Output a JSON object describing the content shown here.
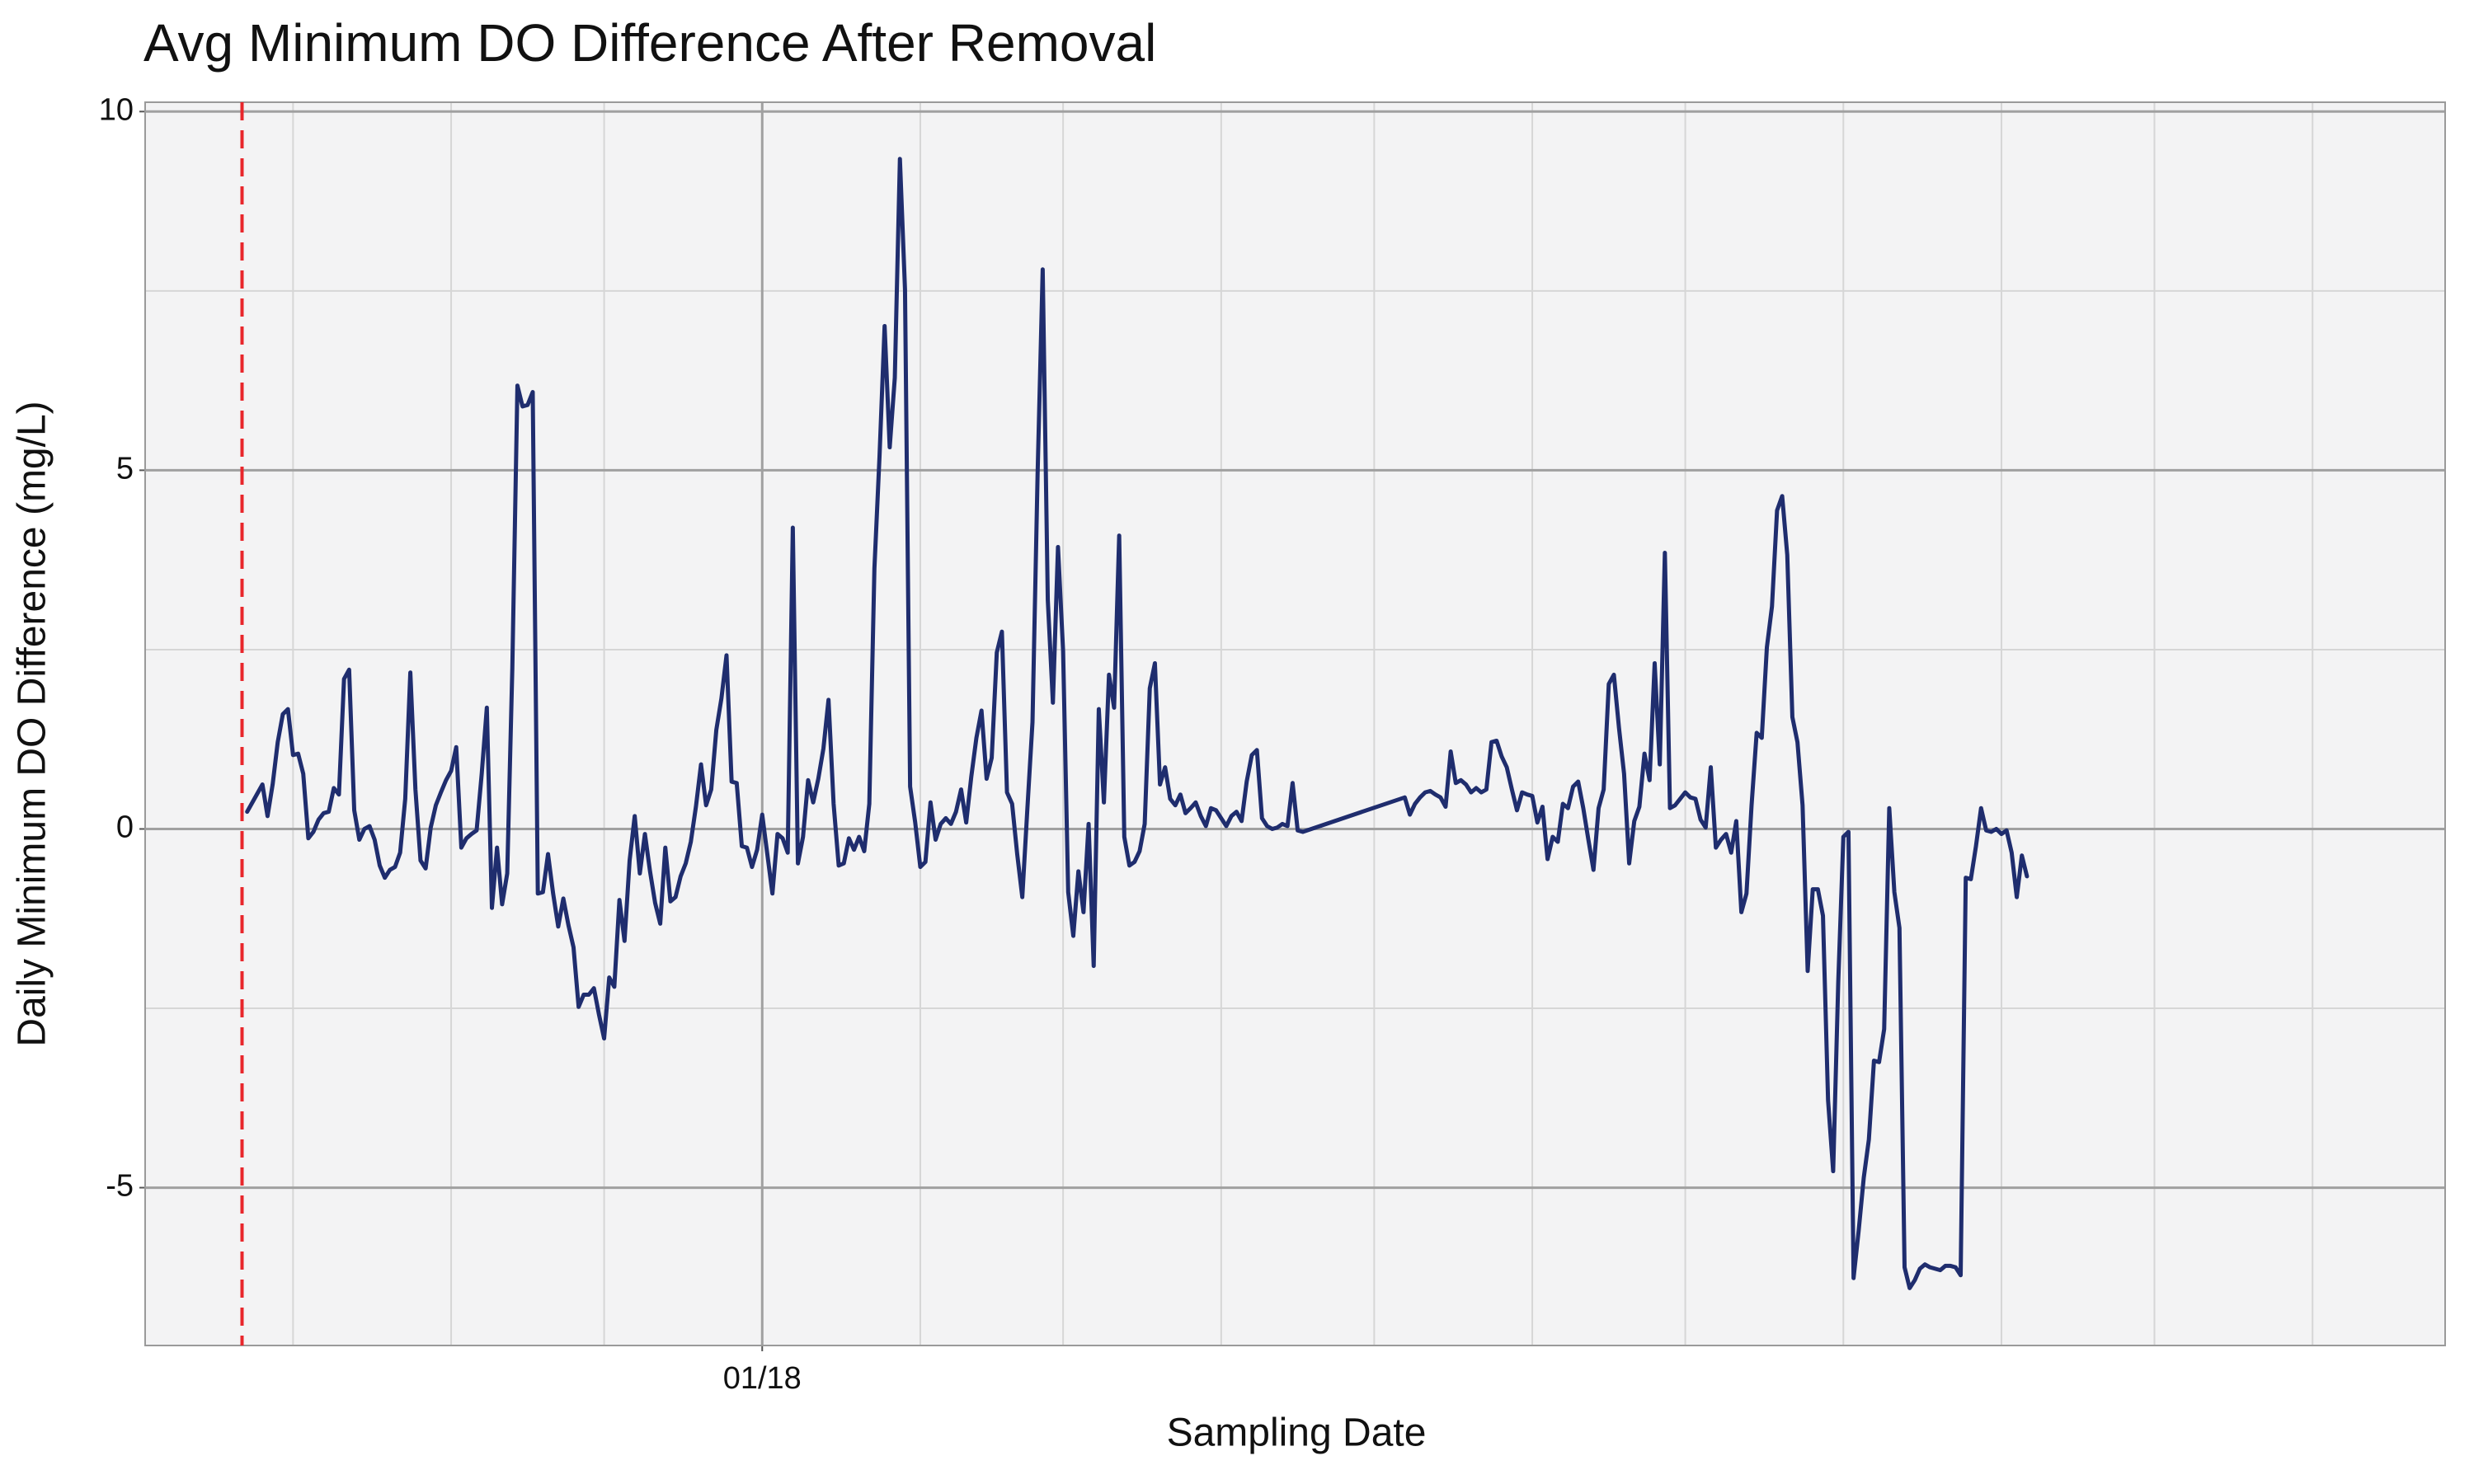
{
  "chart_data": {
    "type": "line",
    "title": "Avg Minimum DO Difference After Removal",
    "x_label": "Sampling Date",
    "y_label": "Daily Minimum DO Difference (mg/L)",
    "color": "#1f2d6e",
    "grid": true,
    "vline": {
      "value": -102,
      "color": "#e8262b"
    },
    "xlim": [
      -121,
      330
    ],
    "xticks": [
      {
        "value": 0,
        "label": "01/18"
      }
    ],
    "minor_xticks": [
      -92,
      -61,
      -31,
      31,
      59,
      90,
      120,
      151,
      181,
      212,
      243,
      273,
      304
    ],
    "ylim": [
      -7.2,
      10.13
    ],
    "yticks": [
      -5,
      0,
      5,
      10
    ],
    "minor_yticks": [
      -2.5,
      2.5,
      7.5
    ],
    "x": [
      -101,
      -98,
      -97,
      -96,
      -95,
      -94,
      -93,
      -92,
      -91,
      -90,
      -89,
      -88,
      -87,
      -86,
      -85,
      -84,
      -83,
      -82,
      -81,
      -80,
      -79,
      -78,
      -77,
      -76,
      -75,
      -74,
      -73,
      -72,
      -71,
      -70,
      -69,
      -68,
      -67,
      -66,
      -65,
      -64,
      -63,
      -62,
      -61,
      -60,
      -59,
      -58,
      -57,
      -56,
      -55,
      -54,
      -53,
      -52,
      -51,
      -50,
      -49,
      -48,
      -47,
      -46,
      -45,
      -44,
      -43,
      -42,
      -41,
      -40,
      -39,
      -38,
      -37,
      -36,
      -35,
      -34,
      -33,
      -32,
      -31,
      -30,
      -29,
      -28,
      -27,
      -26,
      -25,
      -24,
      -23,
      -22,
      -21,
      -20,
      -19,
      -18,
      -17,
      -16,
      -15,
      -14,
      -13,
      -12,
      -11,
      -10,
      -9,
      -8,
      -7,
      -6,
      -5,
      -4,
      -3,
      -2,
      -1,
      0,
      1,
      2,
      3,
      4,
      5,
      6,
      7,
      8,
      9,
      10,
      11,
      12,
      13,
      14,
      15,
      16,
      17,
      18,
      19,
      20,
      21,
      22,
      23,
      24,
      25,
      26,
      27,
      28,
      29,
      30,
      31,
      32,
      33,
      34,
      35,
      36,
      37,
      38,
      39,
      40,
      41,
      42,
      43,
      44,
      45,
      46,
      47,
      48,
      49,
      50,
      51,
      52,
      53,
      54,
      55,
      56,
      57,
      58,
      59,
      60,
      61,
      62,
      63,
      64,
      65,
      66,
      67,
      68,
      69,
      70,
      71,
      72,
      73,
      74,
      75,
      76,
      77,
      78,
      79,
      80,
      81,
      82,
      83,
      84,
      85,
      86,
      87,
      88,
      89,
      90,
      91,
      92,
      93,
      94,
      95,
      96,
      97,
      98,
      99,
      100,
      101,
      102,
      103,
      104,
      105,
      106,
      126,
      127,
      128,
      129,
      130,
      131,
      132,
      133,
      134,
      135,
      136,
      137,
      138,
      139,
      140,
      141,
      142,
      143,
      144,
      145,
      146,
      147,
      148,
      149,
      150,
      151,
      152,
      153,
      154,
      155,
      156,
      157,
      158,
      159,
      160,
      161,
      162,
      163,
      164,
      165,
      166,
      167,
      168,
      169,
      170,
      171,
      172,
      173,
      174,
      175,
      176,
      177,
      178,
      179,
      180,
      181,
      182,
      183,
      184,
      185,
      186,
      187,
      188,
      189,
      190,
      191,
      192,
      193,
      194,
      195,
      196,
      197,
      198,
      199,
      200,
      201,
      202,
      203,
      204,
      205,
      206,
      207,
      208,
      209,
      210,
      211,
      212,
      213,
      214,
      215,
      216,
      217,
      218,
      219,
      220,
      221,
      222,
      223,
      224,
      225,
      226,
      227,
      228,
      229,
      230,
      231,
      232,
      233,
      234,
      235,
      236,
      237,
      238,
      239,
      240,
      241,
      242,
      243,
      244,
      245,
      246,
      247,
      248
    ],
    "values": [
      0.24,
      0.62,
      0.18,
      0.62,
      1.21,
      1.6,
      1.67,
      1.03,
      1.05,
      0.77,
      -0.13,
      -0.04,
      0.13,
      0.22,
      0.24,
      0.57,
      0.48,
      2.09,
      2.22,
      0.26,
      -0.15,
      0,
      0.04,
      -0.15,
      -0.51,
      -0.68,
      -0.57,
      -0.53,
      -0.33,
      0.42,
      2.18,
      0.55,
      -0.44,
      -0.55,
      0.02,
      0.33,
      0.51,
      0.68,
      0.81,
      1.14,
      -0.26,
      -0.13,
      -0.07,
      -0.02,
      0.77,
      1.69,
      -1.1,
      -0.26,
      -1.05,
      -0.62,
      2.24,
      6.18,
      5.89,
      5.91,
      6.09,
      -0.9,
      -0.88,
      -0.35,
      -0.9,
      -1.36,
      -0.97,
      -1.34,
      -1.65,
      -2.48,
      -2.31,
      -2.31,
      -2.22,
      -2.59,
      -2.92,
      -2.07,
      -2.2,
      -0.99,
      -1.56,
      -0.44,
      0.18,
      -0.62,
      -0.07,
      -0.59,
      -1.03,
      -1.32,
      -0.26,
      -1.01,
      -0.95,
      -0.66,
      -0.48,
      -0.18,
      0.31,
      0.9,
      0.33,
      0.55,
      1.38,
      1.82,
      2.42,
      0.66,
      0.64,
      -0.24,
      -0.26,
      -0.53,
      -0.29,
      0.2,
      -0.35,
      -0.9,
      -0.07,
      -0.13,
      -0.33,
      4.2,
      -0.48,
      -0.11,
      0.68,
      0.37,
      0.7,
      1.12,
      1.8,
      0.35,
      -0.51,
      -0.48,
      -0.13,
      -0.29,
      -0.11,
      -0.31,
      0.35,
      3.63,
      5.19,
      7.01,
      5.32,
      6.29,
      9.34,
      7.52,
      0.59,
      0.09,
      -0.53,
      -0.46,
      0.37,
      -0.15,
      0.07,
      0.15,
      0.07,
      0.24,
      0.55,
      0.09,
      0.73,
      1.27,
      1.65,
      0.7,
      0.99,
      2.46,
      2.75,
      0.51,
      0.35,
      -0.35,
      -0.95,
      0.29,
      1.49,
      4.95,
      7.8,
      3.19,
      1.76,
      3.93,
      2.48,
      -0.88,
      -1.49,
      -0.59,
      -1.16,
      0.07,
      -1.91,
      1.67,
      0.37,
      2.15,
      1.69,
      4.09,
      -0.11,
      -0.51,
      -0.46,
      -0.31,
      0.07,
      1.96,
      2.31,
      0.62,
      0.86,
      0.42,
      0.33,
      0.48,
      0.22,
      0.29,
      0.37,
      0.18,
      0.04,
      0.29,
      0.26,
      0.15,
      0.04,
      0.18,
      0.24,
      0.11,
      0.66,
      1.03,
      1.1,
      0.15,
      0.04,
      0,
      0.02,
      0.07,
      0.04,
      0.64,
      -0.02,
      -0.04,
      0.44,
      0.2,
      0.35,
      0.44,
      0.51,
      0.53,
      0.48,
      0.44,
      0.31,
      1.08,
      0.64,
      0.68,
      0.62,
      0.51,
      0.57,
      0.51,
      0.55,
      1.21,
      1.23,
      1.01,
      0.86,
      0.55,
      0.26,
      0.51,
      0.48,
      0.46,
      0.09,
      0.31,
      -0.42,
      -0.11,
      -0.18,
      0.35,
      0.29,
      0.59,
      0.66,
      0.29,
      -0.15,
      -0.57,
      0.29,
      0.55,
      2.02,
      2.15,
      1.41,
      0.77,
      -0.48,
      0.11,
      0.31,
      1.05,
      0.68,
      2.31,
      0.9,
      3.85,
      0.29,
      0.33,
      0.42,
      0.51,
      0.44,
      0.42,
      0.13,
      0.02,
      0.86,
      -0.26,
      -0.15,
      -0.07,
      -0.33,
      0.11,
      -1.16,
      -0.9,
      0.33,
      1.34,
      1.27,
      2.53,
      3.1,
      4.44,
      4.64,
      3.82,
      1.56,
      1.21,
      0.33,
      -1.98,
      -0.84,
      -0.84,
      -1.21,
      -3.78,
      -4.77,
      -2.13,
      -0.11,
      -0.04,
      -6.26,
      -5.6,
      -4.86,
      -4.33,
      -3.23,
      -3.25,
      -2.79,
      0.29,
      -0.88,
      -1.38,
      -6.11,
      -6.4,
      -6.29,
      -6.13,
      -6.07,
      -6.11,
      -6.13,
      -6.15,
      -6.09,
      -6.09,
      -6.11,
      -6.22,
      -0.68,
      -0.7,
      -0.24,
      0.29,
      -0.02,
      -0.04,
      0,
      -0.07,
      -0.02,
      -0.33,
      -0.95,
      -0.37,
      -0.66
    ]
  }
}
